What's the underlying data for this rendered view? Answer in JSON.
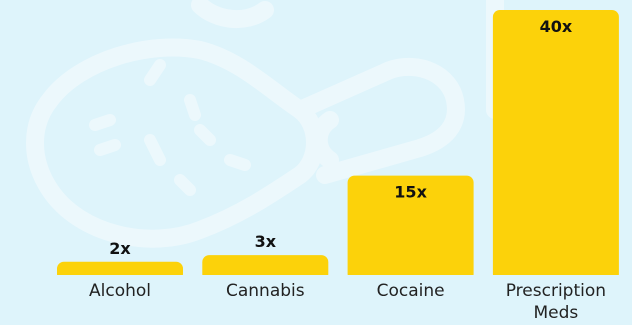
{
  "chart_data": {
    "type": "bar",
    "categories": [
      "Alcohol",
      "Cannabis",
      "Cocaine",
      "Prescription Meds"
    ],
    "category_lines": [
      [
        "Alcohol"
      ],
      [
        "Cannabis"
      ],
      [
        "Cocaine"
      ],
      [
        "Prescription",
        "Meds"
      ]
    ],
    "values": [
      2,
      3,
      15,
      40
    ],
    "value_labels": [
      "2x",
      "3x",
      "15x",
      "40x"
    ],
    "ylim": [
      0,
      40
    ],
    "grid": false,
    "title": "",
    "xlabel": "",
    "ylabel": ""
  },
  "colors": {
    "background": "#def4fb",
    "bar": "#fcd20a",
    "watermark": "#ecf8fc"
  },
  "watermark_icon": "pill-capsule-icon"
}
